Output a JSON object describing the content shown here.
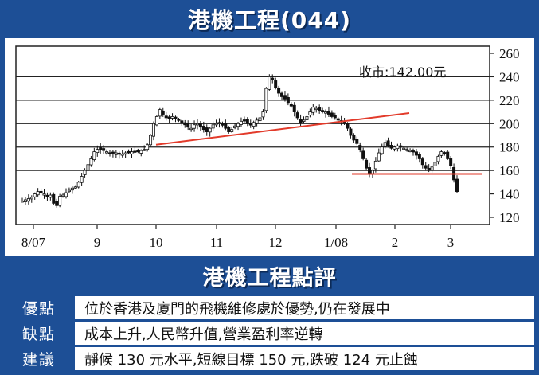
{
  "header": {
    "title": "港機工程(044)"
  },
  "chart_data": {
    "type": "candlestick",
    "annotation": "收市:142.00元",
    "ylim": [
      120,
      260
    ],
    "yticks": [
      260,
      240,
      220,
      200,
      180,
      160,
      140,
      120
    ],
    "xticks": [
      "8/07",
      "9",
      "10",
      "11",
      "12",
      "1/08",
      "2",
      "3"
    ],
    "grid_lines": [
      240,
      220,
      200,
      180,
      160
    ],
    "trendlines": [
      {
        "color": "#e23a2a",
        "from": {
          "x": "10",
          "y": 182
        },
        "to": {
          "x": "2",
          "y": 209
        }
      },
      {
        "color": "#e23a2a",
        "from": {
          "x": "1/08",
          "y": 157
        },
        "to": {
          "x": "3",
          "y": 157
        }
      }
    ],
    "price_path": [
      134,
      135,
      136,
      137,
      140,
      142,
      141,
      140,
      138,
      139,
      132,
      130,
      138,
      139,
      141,
      143,
      145,
      146,
      150,
      155,
      160,
      165,
      170,
      176,
      178,
      178,
      177,
      176,
      175,
      175,
      175,
      174,
      174,
      175,
      175,
      176,
      176,
      176,
      177,
      178,
      182,
      190,
      200,
      206,
      212,
      208,
      205,
      204,
      206,
      205,
      203,
      201,
      199,
      197,
      196,
      199,
      200,
      197,
      195,
      193,
      196,
      199,
      200,
      201,
      199,
      196,
      193,
      195,
      198,
      200,
      202,
      203,
      200,
      199,
      201,
      203,
      205,
      210,
      230,
      240,
      238,
      231,
      226,
      223,
      221,
      218,
      215,
      210,
      205,
      201,
      203,
      206,
      210,
      214,
      213,
      211,
      210,
      210,
      208,
      206,
      205,
      203,
      202,
      200,
      196,
      190,
      186,
      183,
      178,
      170,
      162,
      158,
      160,
      168,
      175,
      180,
      184,
      181,
      179,
      180,
      181,
      180,
      179,
      178,
      177,
      176,
      173,
      170,
      165,
      162,
      160,
      163,
      167,
      172,
      176,
      175,
      170,
      164,
      152,
      142
    ],
    "summary": {
      "open": 134,
      "high": 243,
      "low": 123,
      "close": 142
    }
  },
  "review": {
    "title": "港機工程點評",
    "rows": [
      {
        "label": "優點",
        "text": "位於香港及廈門的飛機維修處於優勢,仍在發展中"
      },
      {
        "label": "缺點",
        "text": "成本上升,人民幣升值,營業盈利率逆轉"
      },
      {
        "label": "建議",
        "text": "靜候 130 元水平,短線目標 150 元,跌破 124 元止蝕"
      }
    ]
  },
  "colors": {
    "frame": "#1d4f96",
    "trend": "#e23a2a",
    "grid": "#222222"
  }
}
